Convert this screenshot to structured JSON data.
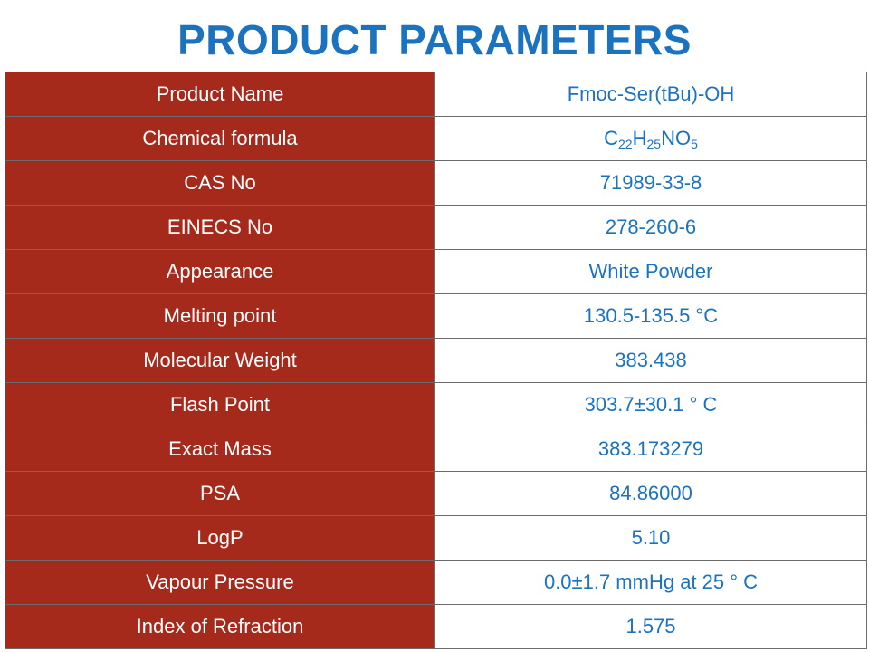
{
  "title": "PRODUCT PARAMETERS",
  "colors": {
    "title": "#1b72bf",
    "label_bg": "#a52a1c",
    "label_text": "#ffffff",
    "value_text": "#1b72bf",
    "border": "#6b6b6b"
  },
  "rows": [
    {
      "label": "Product Name",
      "value": "Fmoc-Ser(tBu)-OH"
    },
    {
      "label": "Chemical formula",
      "formula": [
        "C",
        "22",
        "H",
        "25",
        "NO",
        "5"
      ]
    },
    {
      "label": "CAS No",
      "value": "71989-33-8"
    },
    {
      "label": "EINECS No",
      "value": "278-260-6"
    },
    {
      "label": "Appearance",
      "value": "White Powder"
    },
    {
      "label": "Melting point",
      "value": "130.5-135.5 °C"
    },
    {
      "label": "Molecular Weight",
      "value": "383.438"
    },
    {
      "label": "Flash Point",
      "value": "303.7±30.1 ° C"
    },
    {
      "label": "Exact Mass",
      "value": "383.173279"
    },
    {
      "label": "PSA",
      "value": "84.86000"
    },
    {
      "label": "LogP",
      "value": "5.10"
    },
    {
      "label": "Vapour Pressure",
      "value": "0.0±1.7 mmHg at 25 ° C"
    },
    {
      "label": "Index of Refraction",
      "value": "1.575"
    }
  ]
}
